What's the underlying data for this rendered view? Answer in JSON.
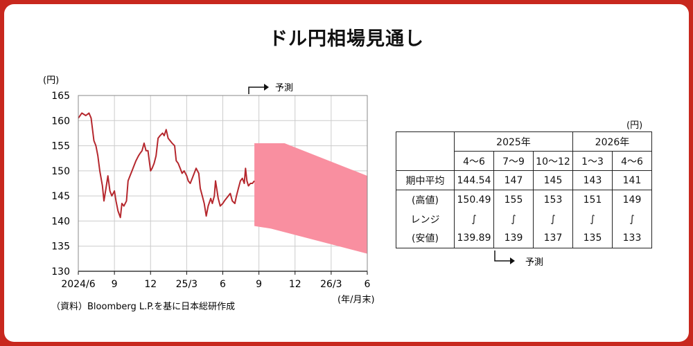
{
  "title": "ドル円相場見通し",
  "chart_data": {
    "type": "line",
    "unit_label": "(円)",
    "x_unit_label": "(年/月末)",
    "source": "（資料）Bloomberg L.P.を基に日本総研作成",
    "forecast_label": "予測",
    "ylim": [
      130,
      165
    ],
    "yticks": [
      130,
      135,
      140,
      145,
      150,
      155,
      160,
      165
    ],
    "xlim": [
      "2024-06",
      "2026-06"
    ],
    "xticks": [
      {
        "x": "2024-06",
        "label": "2024/6"
      },
      {
        "x": "2024-09",
        "label": "9"
      },
      {
        "x": "2024-12",
        "label": "12"
      },
      {
        "x": "2025-03",
        "label": "25/3"
      },
      {
        "x": "2025-06",
        "label": "6"
      },
      {
        "x": "2025-09",
        "label": "9"
      },
      {
        "x": "2025-12",
        "label": "12"
      },
      {
        "x": "2026-03",
        "label": "26/3"
      },
      {
        "x": "2026-06",
        "label": "6"
      }
    ],
    "grid": true,
    "series": [
      {
        "name": "actual",
        "color": "#b5272d",
        "points": [
          [
            "2024-06-01",
            160.5
          ],
          [
            "2024-06-10",
            161.5
          ],
          [
            "2024-06-20",
            161
          ],
          [
            "2024-06-28",
            161.5
          ],
          [
            "2024-07-03",
            160.5
          ],
          [
            "2024-07-10",
            156
          ],
          [
            "2024-07-15",
            155
          ],
          [
            "2024-07-20",
            153
          ],
          [
            "2024-07-25",
            150
          ],
          [
            "2024-08-01",
            147
          ],
          [
            "2024-08-05",
            144
          ],
          [
            "2024-08-10",
            146.5
          ],
          [
            "2024-08-15",
            149
          ],
          [
            "2024-08-20",
            146
          ],
          [
            "2024-08-25",
            145
          ],
          [
            "2024-09-01",
            146
          ],
          [
            "2024-09-05",
            144
          ],
          [
            "2024-09-10",
            142
          ],
          [
            "2024-09-16",
            140.7
          ],
          [
            "2024-09-20",
            143.5
          ],
          [
            "2024-09-25",
            143
          ],
          [
            "2024-10-01",
            144
          ],
          [
            "2024-10-05",
            148
          ],
          [
            "2024-10-10",
            149
          ],
          [
            "2024-10-15",
            150
          ],
          [
            "2024-10-20",
            151
          ],
          [
            "2024-10-25",
            152
          ],
          [
            "2024-11-01",
            153
          ],
          [
            "2024-11-05",
            153.5
          ],
          [
            "2024-11-10",
            154
          ],
          [
            "2024-11-15",
            155.5
          ],
          [
            "2024-11-20",
            154
          ],
          [
            "2024-11-25",
            154
          ],
          [
            "2024-12-01",
            150
          ],
          [
            "2024-12-05",
            150.5
          ],
          [
            "2024-12-10",
            151.5
          ],
          [
            "2024-12-15",
            153
          ],
          [
            "2024-12-20",
            156.5
          ],
          [
            "2024-12-25",
            157
          ],
          [
            "2025-01-01",
            157.5
          ],
          [
            "2025-01-05",
            157
          ],
          [
            "2025-01-10",
            158.2
          ],
          [
            "2025-01-15",
            156.5
          ],
          [
            "2025-01-20",
            156
          ],
          [
            "2025-01-25",
            155.5
          ],
          [
            "2025-02-01",
            155
          ],
          [
            "2025-02-05",
            152
          ],
          [
            "2025-02-10",
            151.5
          ],
          [
            "2025-02-15",
            150.5
          ],
          [
            "2025-02-20",
            149.5
          ],
          [
            "2025-02-25",
            150
          ],
          [
            "2025-03-01",
            149
          ],
          [
            "2025-03-05",
            148
          ],
          [
            "2025-03-10",
            147.5
          ],
          [
            "2025-03-15",
            148.5
          ],
          [
            "2025-03-20",
            149.5
          ],
          [
            "2025-03-25",
            150.5
          ],
          [
            "2025-04-01",
            149.5
          ],
          [
            "2025-04-05",
            146.5
          ],
          [
            "2025-04-10",
            145
          ],
          [
            "2025-04-15",
            143.5
          ],
          [
            "2025-04-20",
            141
          ],
          [
            "2025-04-25",
            143
          ],
          [
            "2025-05-01",
            144.5
          ],
          [
            "2025-05-05",
            143.5
          ],
          [
            "2025-05-10",
            145
          ],
          [
            "2025-05-13",
            148
          ],
          [
            "2025-05-20",
            144.5
          ],
          [
            "2025-05-25",
            143
          ],
          [
            "2025-06-01",
            143.5
          ],
          [
            "2025-06-05",
            144
          ],
          [
            "2025-06-10",
            144.5
          ],
          [
            "2025-06-15",
            145
          ],
          [
            "2025-06-20",
            145.5
          ],
          [
            "2025-06-25",
            144
          ],
          [
            "2025-07-01",
            143.5
          ],
          [
            "2025-07-05",
            145
          ],
          [
            "2025-07-10",
            146.5
          ],
          [
            "2025-07-15",
            148
          ],
          [
            "2025-07-20",
            148.5
          ],
          [
            "2025-07-25",
            147.5
          ],
          [
            "2025-07-28",
            150.5
          ],
          [
            "2025-08-01",
            148
          ],
          [
            "2025-08-05",
            147
          ],
          [
            "2025-08-10",
            147.5
          ],
          [
            "2025-08-15",
            147.5
          ],
          [
            "2025-08-20",
            148
          ]
        ]
      }
    ],
    "forecast_band": {
      "color": "#f98fa0",
      "upper": [
        [
          "2025-08-20",
          155.5
        ],
        [
          "2025-11-05",
          155.5
        ],
        [
          "2026-06-01",
          149
        ]
      ],
      "lower": [
        [
          "2025-08-20",
          139
        ],
        [
          "2025-10-01",
          138.5
        ],
        [
          "2026-06-01",
          133.5
        ]
      ]
    }
  },
  "table": {
    "unit": "(円)",
    "years": [
      "2025年",
      "2026年"
    ],
    "quarters": [
      "4～6",
      "7～9",
      "10～12",
      "1～3",
      "4～6"
    ],
    "avg_label": "期中平均",
    "avg": [
      "144.54",
      "147",
      "145",
      "143",
      "141"
    ],
    "high_label": "(高値)",
    "range_label": "レンジ",
    "low_label": "(安値)",
    "high": [
      "150.49",
      "155",
      "153",
      "151",
      "149"
    ],
    "tilde": [
      "∫",
      "∫",
      "∫",
      "∫",
      "∫"
    ],
    "low": [
      "139.89",
      "139",
      "137",
      "135",
      "133"
    ],
    "forecast_label": "予測"
  }
}
